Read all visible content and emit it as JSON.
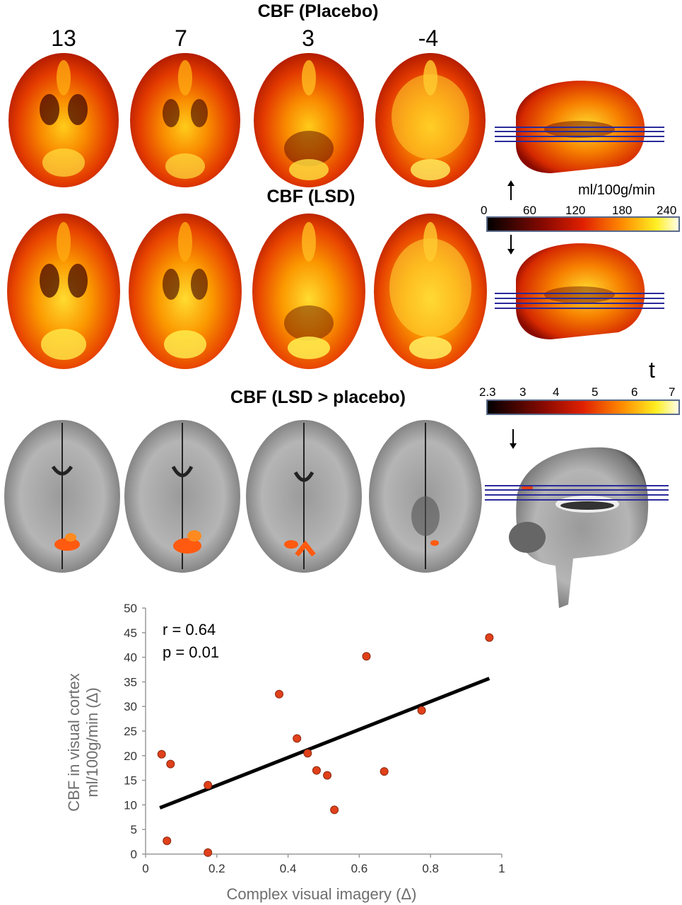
{
  "titles": {
    "placebo": "CBF (Placebo)",
    "lsd": "CBF (LSD)",
    "contrast": "CBF (LSD > placebo)"
  },
  "slice_labels": [
    "13",
    "7",
    "3",
    "-4"
  ],
  "colorbar_cbf": {
    "unit": "ml/100g/min",
    "ticks": [
      "0",
      "60",
      "120",
      "180",
      "240"
    ]
  },
  "colorbar_t": {
    "unit": "t",
    "ticks": [
      "2.3",
      "3",
      "4",
      "5",
      "6",
      "7"
    ]
  },
  "colors": {
    "hot_dark": "#000000",
    "hot_red": "#d42a00",
    "hot_orange": "#f77a00",
    "hot_yellow": "#ffee22",
    "hot_white": "#ffffee",
    "slice_lines": "#2a2a9a",
    "point_fill": "#e0401a"
  },
  "chart_data": {
    "type": "scatter",
    "xlabel": "Complex visual imagery (Δ)",
    "ylabel": "CBF in visual cortex",
    "ylabel2": "ml/100g/min (Δ)",
    "xlim": [
      0,
      1
    ],
    "ylim": [
      0,
      50
    ],
    "xticks": [
      "0",
      "0.2",
      "0.4",
      "0.6",
      "0.8",
      "1"
    ],
    "yticks": [
      "0",
      "5",
      "10",
      "15",
      "20",
      "25",
      "30",
      "35",
      "40",
      "45",
      "50"
    ],
    "grid": false,
    "annotations": [
      "r = 0.64",
      "p = 0.01"
    ],
    "points": [
      {
        "x": 0.045,
        "y": 20.3
      },
      {
        "x": 0.07,
        "y": 18.3
      },
      {
        "x": 0.06,
        "y": 2.7
      },
      {
        "x": 0.175,
        "y": 14.0
      },
      {
        "x": 0.175,
        "y": 0.3
      },
      {
        "x": 0.375,
        "y": 32.5
      },
      {
        "x": 0.425,
        "y": 23.5
      },
      {
        "x": 0.455,
        "y": 20.5
      },
      {
        "x": 0.48,
        "y": 17.0
      },
      {
        "x": 0.51,
        "y": 16.0
      },
      {
        "x": 0.53,
        "y": 9.0
      },
      {
        "x": 0.62,
        "y": 40.2
      },
      {
        "x": 0.67,
        "y": 16.8
      },
      {
        "x": 0.775,
        "y": 29.2
      },
      {
        "x": 0.965,
        "y": 44.0
      }
    ],
    "fit_line": [
      {
        "x": 0.04,
        "y": 9.4
      },
      {
        "x": 0.965,
        "y": 35.7
      }
    ]
  }
}
